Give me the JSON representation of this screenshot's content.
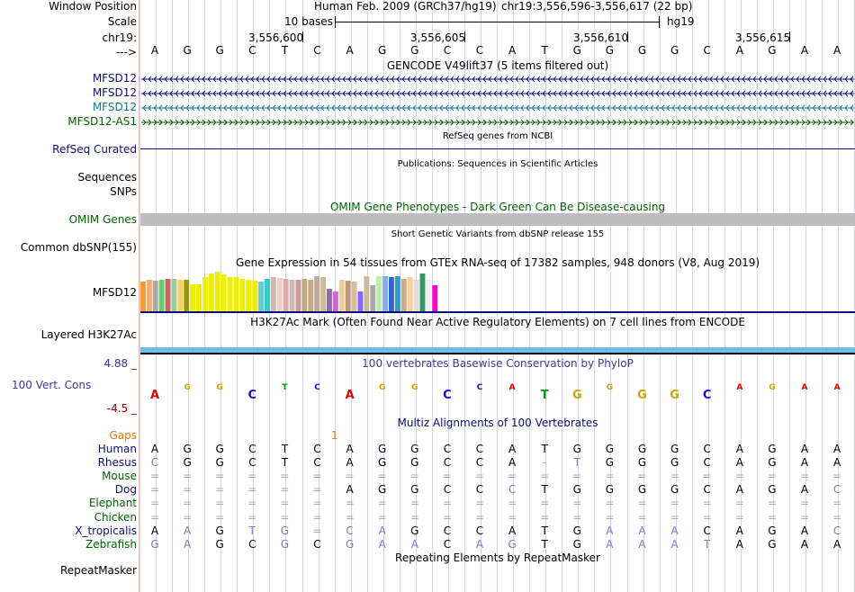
{
  "header": {
    "window_position_label": "Window Position",
    "assembly_text": "Human Feb. 2009 (GRCh37/hg19)",
    "position_text": "chr19:3,556,596-3,556,617 (22 bp)",
    "scale_label": "Scale",
    "scale_text": "10 bases",
    "scale_db": "hg19",
    "chrom_label": "chr19:",
    "arrow_label": "--->",
    "coords": [
      "3,556,600",
      "3,556,605",
      "3,556,610",
      "3,556,615"
    ]
  },
  "sequence": [
    "A",
    "G",
    "G",
    "C",
    "T",
    "C",
    "A",
    "G",
    "G",
    "C",
    "C",
    "A",
    "T",
    "G",
    "G",
    "G",
    "G",
    "C",
    "A",
    "G",
    "A",
    "A"
  ],
  "gencode": {
    "title": "GENCODE V49lift37 (5 items filtered out)",
    "tracks": [
      {
        "name": "MFSD12",
        "color": "#0c0c78"
      },
      {
        "name": "MFSD12",
        "color": "#0c0c78"
      },
      {
        "name": "MFSD12",
        "color": "#0c7a9c"
      },
      {
        "name": "MFSD12-AS1",
        "color": "#006400"
      }
    ]
  },
  "refseq": {
    "label": "RefSeq Curated",
    "title": "RefSeq genes from NCBI"
  },
  "publications": {
    "title": "Publications: Sequences in Scientific Articles",
    "label1": "Sequences",
    "label2": "SNPs"
  },
  "omim": {
    "title": "OMIM Gene Phenotypes - Dark Green Can Be Disease-causing",
    "label": "OMIM Genes"
  },
  "dbsnp": {
    "label": "Common dbSNP(155)",
    "title": "Short Genetic Variants from dbSNP release 155"
  },
  "gtex": {
    "title": "Gene Expression in 54 tissues from GTEx RNA-seq of 17382 samples, 948 donors (V8, Aug 2019)",
    "label": "MFSD12",
    "colors": [
      "#ff9933",
      "#ffaa66",
      "#aaaaaa",
      "#66cc66",
      "#cc6666",
      "#99cc99",
      "#ffcc66",
      "#999900",
      "#eeee00",
      "#eeee00",
      "#eeee00",
      "#eeee00",
      "#eeee00",
      "#eeee00",
      "#eeee00",
      "#eeee00",
      "#eeee00",
      "#eeee00",
      "#eeee00",
      "#66cccc",
      "#33cccc",
      "#ccbbaa",
      "#eecccc",
      "#ddaaaa",
      "#ccbbbb",
      "#cc9999",
      "#bbaa88",
      "#ccaa88",
      "#bbaa99",
      "#ccbb99",
      "#9966aa",
      "#cc66cc",
      "#eecc99",
      "#bb9977",
      "#ddbb99",
      "#8866ff",
      "#ccbb99",
      "#aaaaaa",
      "#bbeeaa",
      "#88aaff",
      "#3366cc",
      "#3399cc",
      "#ccaa88",
      "#ffcc99",
      "#dddddd",
      "#339966",
      "#eeeeee",
      "#ff00cc"
    ],
    "values": [
      0.68,
      0.72,
      0.7,
      0.72,
      0.75,
      0.75,
      0.72,
      0.72,
      0.62,
      0.62,
      0.8,
      0.88,
      0.92,
      0.85,
      0.8,
      0.8,
      0.75,
      0.72,
      0.7,
      0.68,
      0.75,
      0.8,
      0.78,
      0.75,
      0.72,
      0.72,
      0.75,
      0.72,
      0.82,
      0.8,
      0.52,
      0.45,
      0.72,
      0.7,
      0.68,
      0.45,
      0.82,
      0.6,
      0.82,
      0.82,
      0.8,
      0.82,
      0.75,
      0.8,
      0.72,
      0.88,
      0.72,
      0.6
    ]
  },
  "h3k27ac": {
    "title": "H3K27Ac Mark (Often Found Near Active Regulatory Elements) on 7 cell lines from ENCODE",
    "label": "Layered H3K27Ac"
  },
  "cons": {
    "title": "100 vertebrates Basewise Conservation by PhyloP",
    "label": "100 Vert. Cons",
    "max": "4.88 _",
    "min": "-4.5 _"
  },
  "multiz": {
    "title": "Multiz Alignments of 100 Vertebrates",
    "gaps_label": "Gaps",
    "gaps_value": "1",
    "species": [
      {
        "name": "Human",
        "bases": [
          "A",
          "G",
          "G",
          "C",
          "T",
          "C",
          "A",
          "G",
          "G",
          "C",
          "C",
          "A",
          "T",
          "G",
          "G",
          "G",
          "G",
          "C",
          "A",
          "G",
          "A",
          "A"
        ]
      },
      {
        "name": "Rhesus",
        "bases": [
          "C",
          "G",
          "G",
          "C",
          "T",
          "C",
          "A",
          "G",
          "G",
          "C",
          "C",
          "A",
          "-",
          "T",
          "G",
          "G",
          "G",
          "C",
          "A",
          "G",
          "A",
          "A"
        ]
      },
      {
        "name": "Mouse",
        "bases": [
          "=",
          "=",
          "=",
          "=",
          "=",
          "=",
          "=",
          "=",
          "=",
          "=",
          "=",
          "=",
          "=",
          "=",
          "=",
          "=",
          "=",
          "=",
          "=",
          "=",
          "=",
          "="
        ]
      },
      {
        "name": "Dog",
        "bases": [
          "=",
          "=",
          "=",
          "=",
          "=",
          "=",
          "A",
          "G",
          "G",
          "C",
          "C",
          "C",
          "T",
          "G",
          "G",
          "G",
          "G",
          "C",
          "A",
          "G",
          "A",
          "C"
        ]
      },
      {
        "name": "Elephant",
        "bases": [
          "=",
          "=",
          "=",
          "=",
          "=",
          "=",
          "=",
          "=",
          "=",
          "=",
          "=",
          "=",
          "=",
          "=",
          "=",
          "=",
          "=",
          "=",
          "=",
          "=",
          "=",
          "="
        ]
      },
      {
        "name": "Chicken",
        "bases": [
          "=",
          "=",
          "=",
          "=",
          "=",
          "=",
          "=",
          "=",
          "=",
          "=",
          "=",
          "=",
          "=",
          "=",
          "=",
          "=",
          "=",
          "=",
          "=",
          "=",
          "=",
          "="
        ]
      },
      {
        "name": "X_tropicalis",
        "bases": [
          "A",
          "A",
          "G",
          "T",
          "G",
          "=",
          "C",
          "A",
          "G",
          "C",
          "C",
          "A",
          "T",
          "G",
          "A",
          "A",
          "A",
          "C",
          "A",
          "G",
          "A",
          "C"
        ]
      },
      {
        "name": "Zebrafish",
        "bases": [
          "G",
          "A",
          "G",
          "C",
          "G",
          "C",
          "G",
          "A",
          "A",
          "C",
          "A",
          "G",
          "T",
          "G",
          "A",
          "A",
          "A",
          "T",
          "A",
          "G",
          "A",
          "A"
        ]
      }
    ]
  },
  "repeatmasker": {
    "title": "Repeating Elements by RepeatMasker",
    "label": "RepeatMasker"
  },
  "colors": {
    "blue_label": "#0c0c78",
    "cons": "#3a3a98",
    "gaps": "#e07a00",
    "omim": "#006400",
    "h3k": "#6cbfe8"
  }
}
